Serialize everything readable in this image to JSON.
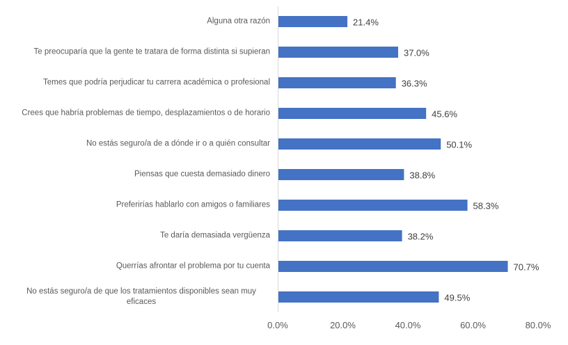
{
  "chart_data": {
    "type": "bar",
    "orientation": "horizontal",
    "categories": [
      "Alguna otra razón",
      "Te preocuparía que la gente te tratara de forma distinta si supieran",
      "Temes que podría perjudicar tu carrera académica o profesional",
      "Crees que habría problemas de tiempo, desplazamientos o de horario",
      "No estás seguro/a de a dónde ir o a quién consultar",
      "Piensas que cuesta demasiado dinero",
      "Preferirías hablarlo con amigos o familiares",
      "Te daría demasiada vergüenza",
      "Querrías afrontar el problema por tu cuenta",
      "No estás seguro/a de que los tratamientos disponibles sean muy eficaces"
    ],
    "values": [
      21.4,
      37.0,
      36.3,
      45.6,
      50.1,
      38.8,
      58.3,
      38.2,
      70.7,
      49.5
    ],
    "data_labels": [
      "21.4%",
      "37.0%",
      "36.3%",
      "45.6%",
      "50.1%",
      "38.8%",
      "58.3%",
      "38.2%",
      "70.7%",
      "49.5%"
    ],
    "xlim": [
      0,
      80
    ],
    "x_ticks": [
      "0.0%",
      "20.0%",
      "40.0%",
      "60.0%",
      "80.0%"
    ],
    "grid": false,
    "bar_color": "#4472C4",
    "title": "",
    "xlabel": "",
    "ylabel": ""
  }
}
